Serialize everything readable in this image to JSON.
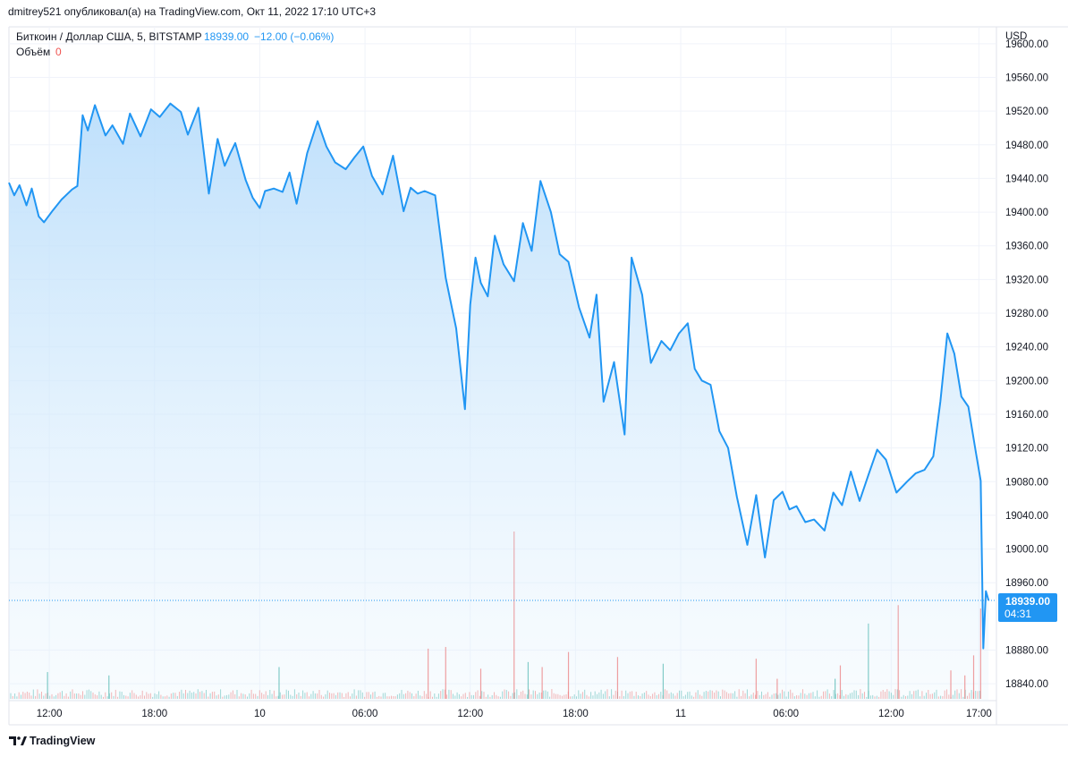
{
  "publish_line": "dmitrey521 опубликовал(а) на TradingView.com, Окт 11, 2022 17:10 UTC+3",
  "symbol": {
    "name": "Биткоин / Доллар США, 5, BITSTAMP",
    "last": "18939.00",
    "change": "−12.00 (−0.06%)"
  },
  "volume": {
    "label": "Объём",
    "value": "0"
  },
  "currency": "USD",
  "price_tag": {
    "price": "18939.00",
    "countdown": "04:31"
  },
  "brand": {
    "name": "TradingView"
  },
  "colors": {
    "line": "#2196f3",
    "area_top": "#bbdefb",
    "vol_up": "#26a69a",
    "vol_down": "#ef5350",
    "grid": "#f0f3fa",
    "price_tag": "#2196f3"
  },
  "chart_data": {
    "type": "area",
    "title": "Биткоин / Доллар США, 5, BITSTAMP",
    "ylabel": "USD",
    "ylim": [
      18820,
      19620
    ],
    "y_ticks": [
      "19600.00",
      "19560.00",
      "19520.00",
      "19480.00",
      "19440.00",
      "19400.00",
      "19360.00",
      "19320.00",
      "19280.00",
      "19240.00",
      "19200.00",
      "19160.00",
      "19120.00",
      "19080.00",
      "19040.00",
      "19000.00",
      "18960.00",
      "18880.00",
      "18840.00"
    ],
    "x_ticks": [
      "12:00",
      "18:00",
      "10",
      "06:00",
      "12:00",
      "18:00",
      "11",
      "06:00",
      "12:00",
      "17:00"
    ],
    "x_tick_hours": [
      0,
      6,
      12,
      18,
      24,
      30,
      36,
      42,
      48,
      53
    ],
    "xlim_hours": [
      -2.3,
      54.0
    ],
    "series": [
      {
        "hours": [
          -2.3,
          -2.0,
          -1.7,
          -1.3,
          -1.0,
          -0.6,
          -0.3,
          0.2,
          0.7,
          1.3,
          1.6,
          1.9,
          2.2,
          2.6,
          3.2,
          3.6,
          4.2,
          4.6,
          5.2,
          5.8,
          6.3,
          6.9,
          7.5,
          7.9,
          8.5,
          9.1,
          9.6,
          10.0,
          10.3,
          10.6,
          11.2,
          11.6,
          12.0,
          12.3,
          12.8,
          13.3,
          13.7,
          14.1,
          14.7,
          15.3,
          15.8,
          16.3,
          16.9,
          17.4,
          17.9,
          18.4,
          19.0,
          19.6,
          20.2,
          20.6,
          21.0,
          21.4,
          22.0,
          22.6,
          23.2,
          23.7,
          24.0,
          24.3,
          24.6,
          25.0,
          25.4,
          25.9,
          26.5,
          27.0,
          27.5,
          28.0,
          28.6,
          29.1,
          29.6,
          30.2,
          30.8,
          31.2,
          31.6,
          32.2,
          32.8,
          33.2,
          33.8,
          34.3,
          34.9,
          35.4,
          35.9,
          36.4,
          36.8,
          37.2,
          37.7,
          38.2,
          38.7,
          39.2,
          39.8,
          40.3,
          40.8,
          41.3,
          41.8,
          42.2,
          42.6,
          43.1,
          43.6,
          44.2,
          44.7,
          45.2,
          45.7,
          46.2,
          46.7,
          47.2,
          47.7,
          48.3,
          48.9,
          49.4,
          49.9,
          50.4,
          50.8,
          51.2,
          51.6,
          52.0,
          52.4,
          52.8,
          53.1,
          53.25,
          53.4,
          53.55
        ],
        "price": [
          19435,
          19420,
          19432,
          19408,
          19428,
          19395,
          19388,
          19402,
          19415,
          19427,
          19431,
          19515,
          19497,
          19527,
          19491,
          19503,
          19481,
          19517,
          19490,
          19522,
          19513,
          19529,
          19519,
          19492,
          19524,
          19422,
          19487,
          19455,
          19469,
          19482,
          19438,
          19417,
          19405,
          19425,
          19428,
          19424,
          19447,
          19410,
          19470,
          19508,
          19478,
          19459,
          19451,
          19465,
          19478,
          19443,
          19421,
          19467,
          19401,
          19429,
          19422,
          19425,
          19420,
          19322,
          19262,
          19166,
          19290,
          19346,
          19316,
          19300,
          19372,
          19338,
          19318,
          19387,
          19354,
          19437,
          19400,
          19350,
          19341,
          19287,
          19251,
          19302,
          19175,
          19222,
          19136,
          19346,
          19302,
          19221,
          19247,
          19236,
          19256,
          19268,
          19214,
          19200,
          19195,
          19140,
          19120,
          19062,
          19005,
          19064,
          18990,
          19058,
          19068,
          19047,
          19051,
          19032,
          19035,
          19022,
          19067,
          19052,
          19092,
          19057,
          19088,
          19118,
          19106,
          19067,
          19080,
          19090,
          19094,
          19110,
          19175,
          19256,
          19232,
          19181,
          19169,
          19118,
          19081,
          18882,
          18950,
          18939
        ]
      }
    ],
    "volume_bars": [
      {
        "h": 26.5,
        "rel": 1.0,
        "dir": "down"
      },
      {
        "h": 21.6,
        "rel": 0.3,
        "dir": "down"
      },
      {
        "h": 22.6,
        "rel": 0.31,
        "dir": "down"
      },
      {
        "h": 48.4,
        "rel": 0.56,
        "dir": "down"
      },
      {
        "h": 46.7,
        "rel": 0.45,
        "dir": "up"
      },
      {
        "h": 53.1,
        "rel": 0.54,
        "dir": "down"
      },
      {
        "h": 52.7,
        "rel": 0.26,
        "dir": "down"
      },
      {
        "h": 51.4,
        "rel": 0.17,
        "dir": "down"
      },
      {
        "h": 52.2,
        "rel": 0.14,
        "dir": "down"
      },
      {
        "h": 40.3,
        "rel": 0.24,
        "dir": "down"
      },
      {
        "h": 45.1,
        "rel": 0.2,
        "dir": "down"
      },
      {
        "h": 13.1,
        "rel": 0.19,
        "dir": "up"
      },
      {
        "h": 27.3,
        "rel": 0.22,
        "dir": "up"
      },
      {
        "h": 29.6,
        "rel": 0.28,
        "dir": "down"
      },
      {
        "h": 32.4,
        "rel": 0.25,
        "dir": "down"
      },
      {
        "h": 35.0,
        "rel": 0.21,
        "dir": "up"
      },
      {
        "h": 28.1,
        "rel": 0.19,
        "dir": "down"
      },
      {
        "h": -0.1,
        "rel": 0.16,
        "dir": "up"
      },
      {
        "h": 24.6,
        "rel": 0.18,
        "dir": "down"
      },
      {
        "h": 3.4,
        "rel": 0.14,
        "dir": "up"
      },
      {
        "h": 41.5,
        "rel": 0.12,
        "dir": "down"
      },
      {
        "h": 44.8,
        "rel": 0.12,
        "dir": "up"
      }
    ]
  }
}
